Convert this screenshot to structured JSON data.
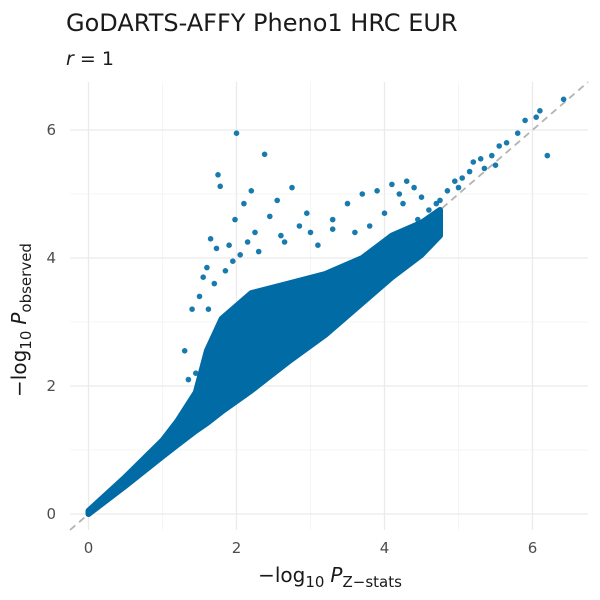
{
  "chart_data": {
    "type": "scatter",
    "title": "GoDARTS-AFFY Pheno1 HRC EUR",
    "subtitle": {
      "var": "r",
      "op": " = ",
      "value": "1"
    },
    "xlabel": {
      "prefix": "−log",
      "base": "10",
      "var": "P",
      "subscript": "Z−stats"
    },
    "ylabel": {
      "prefix": "−log",
      "base": "10",
      "var": "P",
      "subscript": "observed"
    },
    "xlim": [
      -0.25,
      6.75
    ],
    "ylim": [
      -0.25,
      6.75
    ],
    "x_ticks": [
      0,
      2,
      4,
      6
    ],
    "y_ticks": [
      0,
      2,
      4,
      6
    ],
    "x_tick_labels": [
      "0",
      "2",
      "4",
      "6"
    ],
    "y_tick_labels": [
      "0",
      "2",
      "4",
      "6"
    ],
    "grid": true,
    "reference_line": {
      "slope": 1,
      "intercept": 0,
      "style": "dashed",
      "color": "#b3b3b3"
    },
    "point_color": "#006ba4",
    "dense_band": [
      {
        "x": 0.0,
        "lower": 0.0,
        "upper": 0.05
      },
      {
        "x": 0.5,
        "lower": 0.44,
        "upper": 0.58
      },
      {
        "x": 1.0,
        "lower": 0.9,
        "upper": 1.15
      },
      {
        "x": 1.2,
        "lower": 1.08,
        "upper": 1.45
      },
      {
        "x": 1.45,
        "lower": 1.3,
        "upper": 1.9
      },
      {
        "x": 1.6,
        "lower": 1.42,
        "upper": 2.55
      },
      {
        "x": 1.8,
        "lower": 1.6,
        "upper": 3.05
      },
      {
        "x": 2.2,
        "lower": 1.93,
        "upper": 3.45
      },
      {
        "x": 2.7,
        "lower": 2.38,
        "upper": 3.6
      },
      {
        "x": 3.2,
        "lower": 2.8,
        "upper": 3.75
      },
      {
        "x": 3.7,
        "lower": 3.3,
        "upper": 4.0
      },
      {
        "x": 4.1,
        "lower": 3.7,
        "upper": 4.35
      },
      {
        "x": 4.5,
        "lower": 4.05,
        "upper": 4.55
      },
      {
        "x": 4.75,
        "lower": 4.35,
        "upper": 4.75
      }
    ],
    "points": [
      [
        2.0,
        5.95
      ],
      [
        2.38,
        5.62
      ],
      [
        1.75,
        5.3
      ],
      [
        1.78,
        5.12
      ],
      [
        1.65,
        4.3
      ],
      [
        1.73,
        4.15
      ],
      [
        1.98,
        4.6
      ],
      [
        2.1,
        4.85
      ],
      [
        2.55,
        4.9
      ],
      [
        2.75,
        5.1
      ],
      [
        2.2,
        5.05
      ],
      [
        2.95,
        4.7
      ],
      [
        2.45,
        4.65
      ],
      [
        3.3,
        4.6
      ],
      [
        3.5,
        4.85
      ],
      [
        3.7,
        5.0
      ],
      [
        3.9,
        5.05
      ],
      [
        4.1,
        5.15
      ],
      [
        4.2,
        5.0
      ],
      [
        4.4,
        5.1
      ],
      [
        4.5,
        4.95
      ],
      [
        4.6,
        4.75
      ],
      [
        4.75,
        4.9
      ],
      [
        4.85,
        5.05
      ],
      [
        4.95,
        5.2
      ],
      [
        5.05,
        5.25
      ],
      [
        5.15,
        5.35
      ],
      [
        5.2,
        5.5
      ],
      [
        5.3,
        5.55
      ],
      [
        5.45,
        5.6
      ],
      [
        5.55,
        5.75
      ],
      [
        5.65,
        5.8
      ],
      [
        5.8,
        5.95
      ],
      [
        5.9,
        6.15
      ],
      [
        6.05,
        6.2
      ],
      [
        6.1,
        6.3
      ],
      [
        6.2,
        5.6
      ],
      [
        6.42,
        6.48
      ],
      [
        5.5,
        5.45
      ],
      [
        5.35,
        5.4
      ],
      [
        4.3,
        5.2
      ],
      [
        4.7,
        4.85
      ],
      [
        5.0,
        5.1
      ],
      [
        3.3,
        4.45
      ],
      [
        3.0,
        4.4
      ],
      [
        2.85,
        4.5
      ],
      [
        2.6,
        4.35
      ],
      [
        2.25,
        4.4
      ],
      [
        2.15,
        4.25
      ],
      [
        1.9,
        4.2
      ],
      [
        1.6,
        3.85
      ],
      [
        1.55,
        3.7
      ],
      [
        1.5,
        3.4
      ],
      [
        1.4,
        3.2
      ],
      [
        1.3,
        2.55
      ],
      [
        1.35,
        2.1
      ],
      [
        1.45,
        2.2
      ],
      [
        1.7,
        3.6
      ],
      [
        1.95,
        3.95
      ],
      [
        2.3,
        4.1
      ],
      [
        3.1,
        4.2
      ],
      [
        3.6,
        4.4
      ],
      [
        4.0,
        4.7
      ],
      [
        4.45,
        4.6
      ],
      [
        3.8,
        4.5
      ],
      [
        4.25,
        4.85
      ],
      [
        2.65,
        4.25
      ],
      [
        1.85,
        3.8
      ],
      [
        1.62,
        3.2
      ],
      [
        2.05,
        4.05
      ]
    ]
  }
}
